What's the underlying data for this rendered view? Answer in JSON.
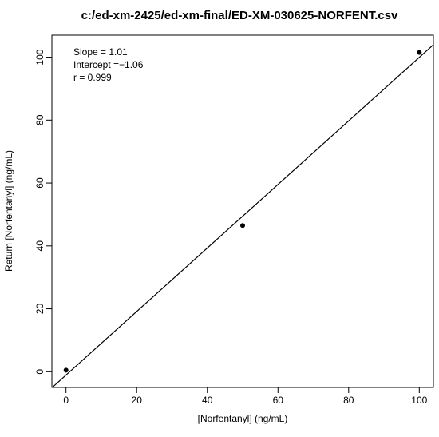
{
  "chart_data": {
    "type": "scatter",
    "title": "c:/ed-xm-2425/ed-xm-final/ED-XM-030625-NORFENT.csv",
    "xlabel": "[Norfentanyl] (ng/mL)",
    "ylabel": "Return [Norfentanyl] (ng/mL)",
    "xlim": [
      -4,
      104
    ],
    "ylim": [
      -5,
      107
    ],
    "x_ticks": [
      0,
      20,
      40,
      60,
      80,
      100
    ],
    "y_ticks": [
      0,
      20,
      40,
      60,
      80,
      100
    ],
    "grid": false,
    "legend": "none",
    "series": [
      {
        "x": [
          0,
          50,
          100
        ],
        "y": [
          0.5,
          46.5,
          101.5
        ]
      }
    ],
    "fit_line": {
      "slope": 1.01,
      "intercept": -1.06
    },
    "annotations": [
      "Slope = 1.01",
      "Intercept =−1.06",
      "r = 0.999"
    ],
    "colors": {
      "points": "#000000",
      "line": "#000000",
      "axes": "#000000"
    }
  }
}
